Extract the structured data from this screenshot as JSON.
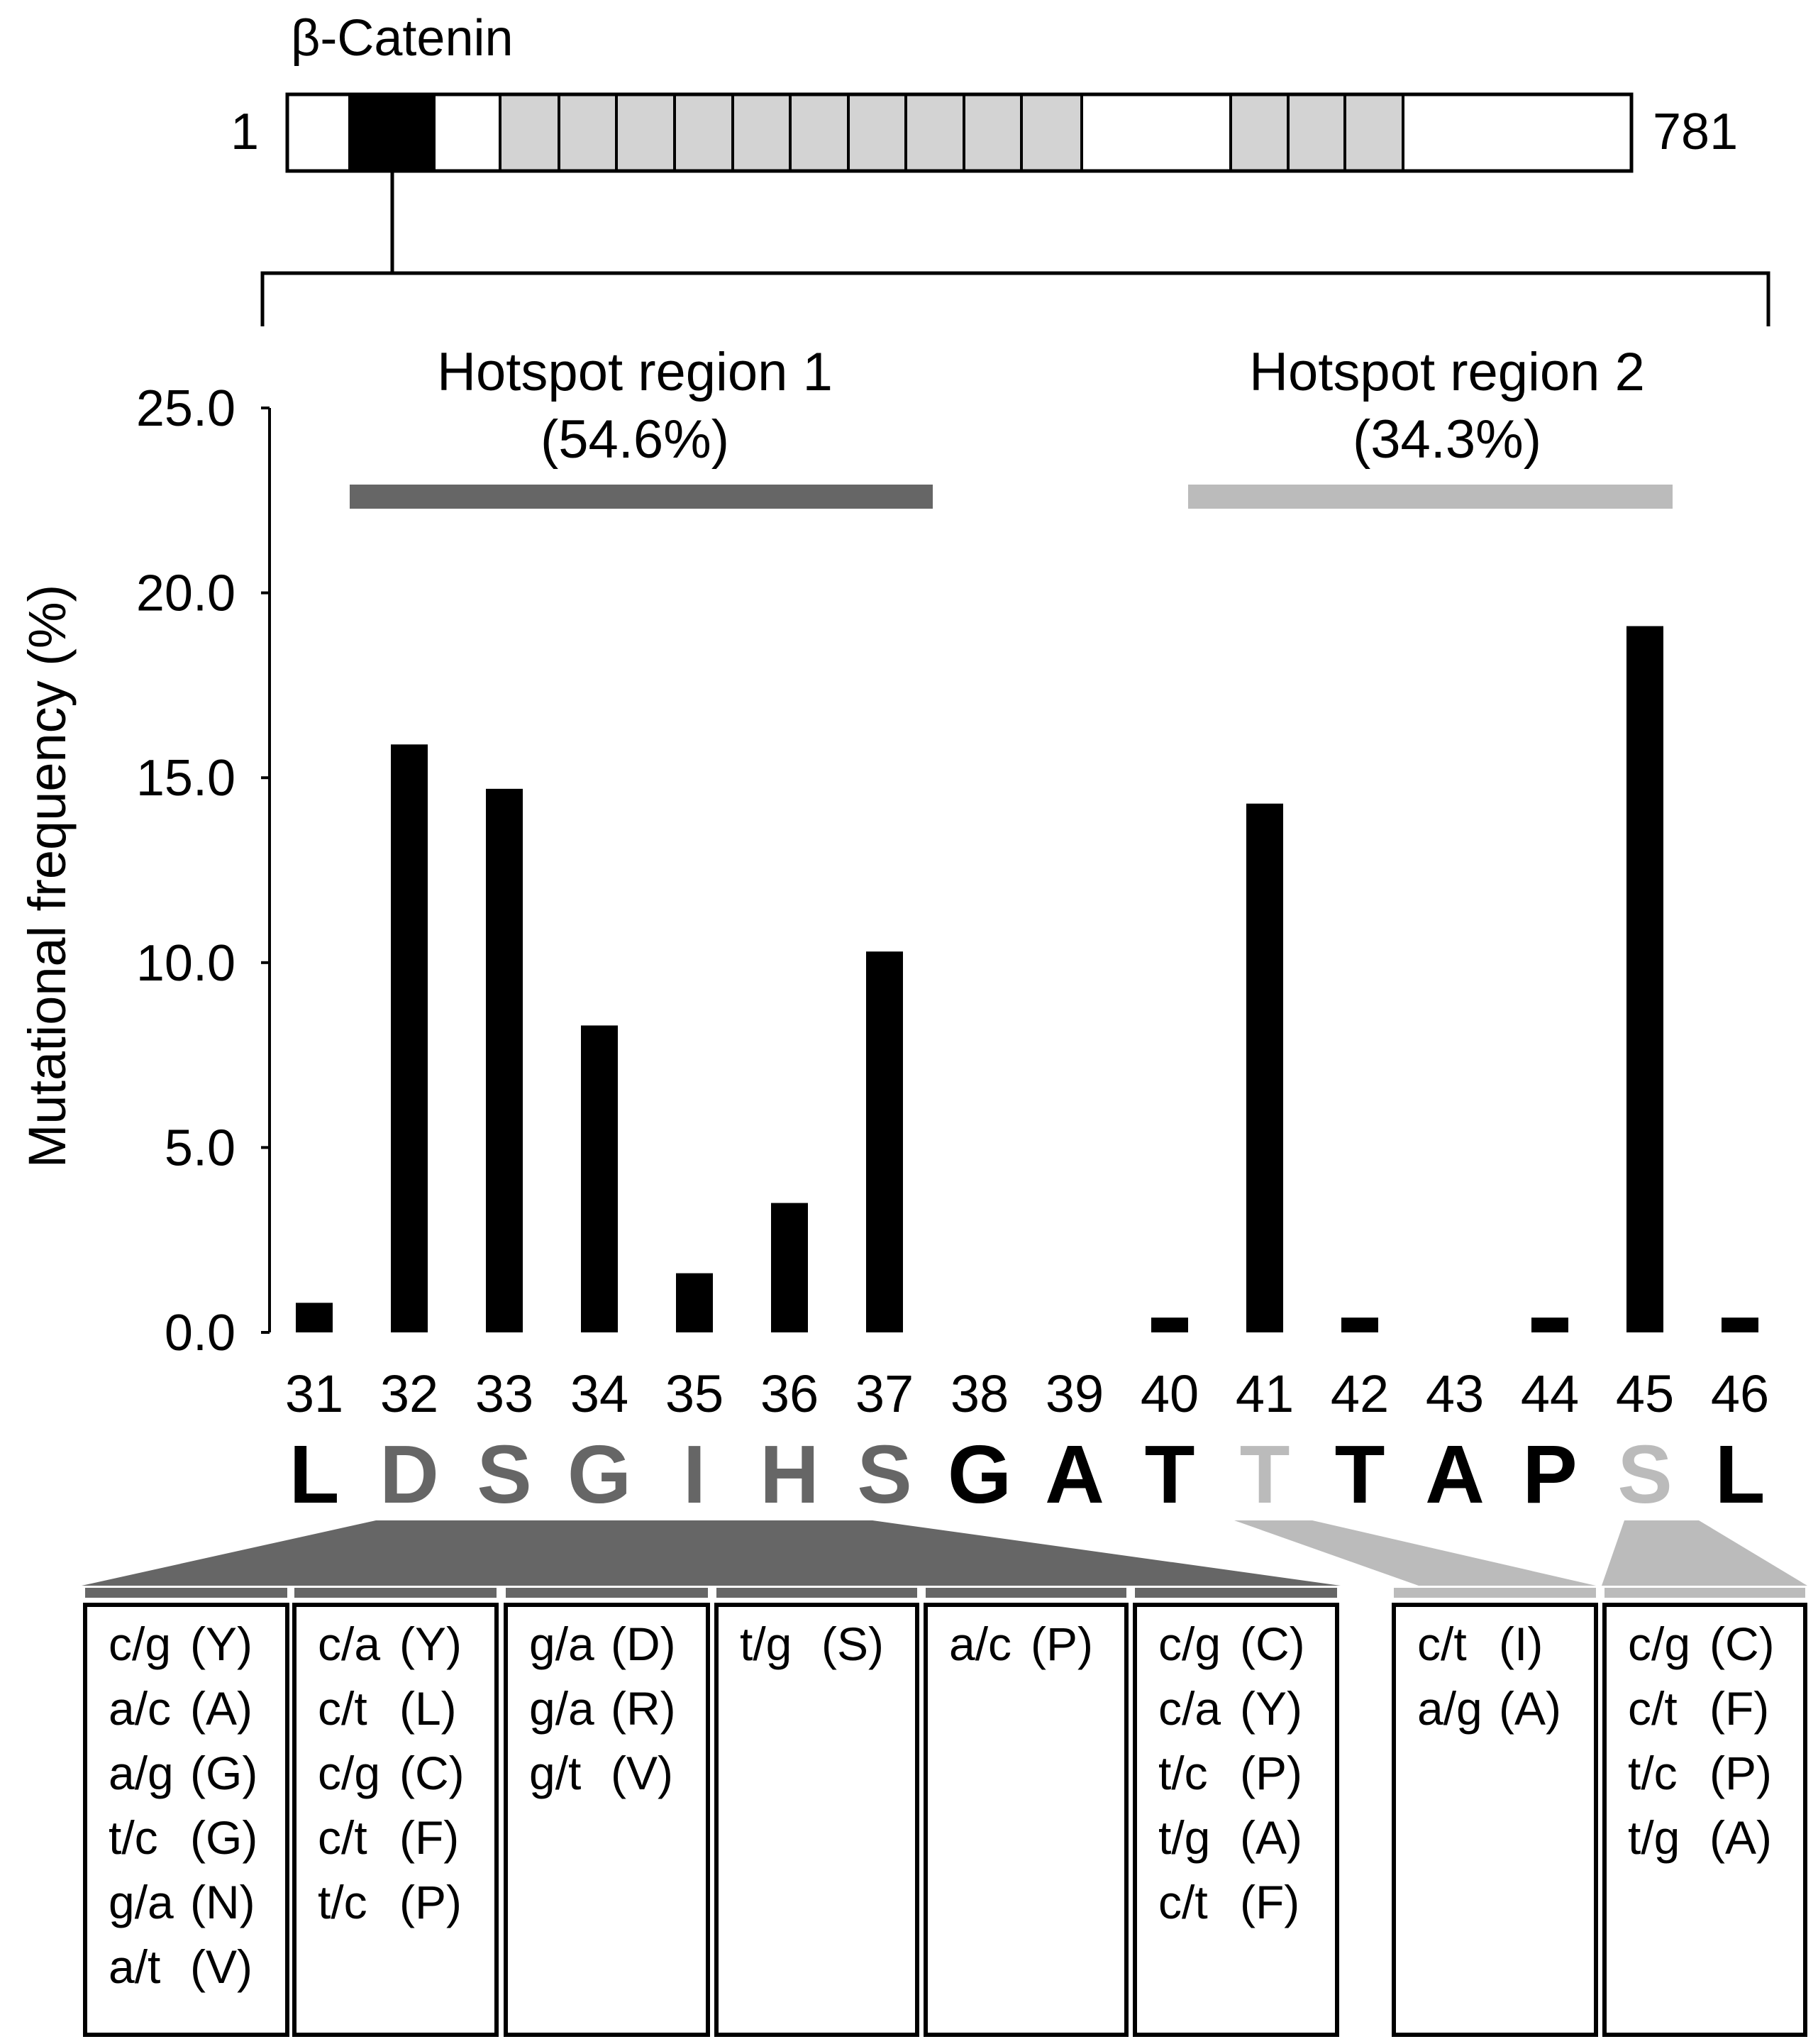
{
  "chart_data": {
    "type": "bar",
    "protein": {
      "name": "β-Catenin",
      "start": "1",
      "end": "781",
      "start_value": 1,
      "end_value": 781
    },
    "ylabel": "Mutational frequency (%)",
    "ylim": [
      0,
      25
    ],
    "yticks": [
      "0.0",
      "5.0",
      "10.0",
      "15.0",
      "20.0",
      "25.0"
    ],
    "ytick_values": [
      0,
      5,
      10,
      15,
      20,
      25
    ],
    "categories": [
      "31",
      "32",
      "33",
      "34",
      "35",
      "36",
      "37",
      "38",
      "39",
      "40",
      "41",
      "42",
      "43",
      "44",
      "45",
      "46"
    ],
    "values": [
      0.8,
      15.9,
      14.7,
      8.3,
      1.6,
      3.5,
      10.3,
      0,
      0,
      0.4,
      14.3,
      0.4,
      0,
      0.4,
      19.1,
      0.4
    ],
    "residues": [
      {
        "letter": "L",
        "color": "#000000"
      },
      {
        "letter": "D",
        "color": "#666666"
      },
      {
        "letter": "S",
        "color": "#666666"
      },
      {
        "letter": "G",
        "color": "#666666"
      },
      {
        "letter": "I",
        "color": "#666666"
      },
      {
        "letter": "H",
        "color": "#666666"
      },
      {
        "letter": "S",
        "color": "#666666"
      },
      {
        "letter": "G",
        "color": "#000000"
      },
      {
        "letter": "A",
        "color": "#000000"
      },
      {
        "letter": "T",
        "color": "#000000"
      },
      {
        "letter": "T",
        "color": "#bbbbbb"
      },
      {
        "letter": "T",
        "color": "#000000"
      },
      {
        "letter": "A",
        "color": "#000000"
      },
      {
        "letter": "P",
        "color": "#000000"
      },
      {
        "letter": "S",
        "color": "#bbbbbb"
      },
      {
        "letter": "L",
        "color": "#000000"
      }
    ],
    "hotspots": [
      {
        "label": "Hotspot region 1",
        "percent": "(54.6%)",
        "color": "#666666",
        "from": 32,
        "to": 37
      },
      {
        "label": "Hotspot region 2",
        "percent": "(34.3%)",
        "color": "#bbbbbb",
        "from": 41,
        "to": 45
      }
    ],
    "mutation_boxes": [
      {
        "group": 1,
        "lines": [
          [
            "c/g",
            "(Y)"
          ],
          [
            "a/c",
            "(A)"
          ],
          [
            "a/g",
            "(G)"
          ],
          [
            "t/c",
            "(G)"
          ],
          [
            "g/a",
            "(N)"
          ],
          [
            "a/t",
            "(V)"
          ]
        ]
      },
      {
        "group": 1,
        "lines": [
          [
            "c/a",
            "(Y)"
          ],
          [
            "c/t",
            "(L)"
          ],
          [
            "c/g",
            "(C)"
          ],
          [
            "c/t",
            "(F)"
          ],
          [
            "t/c",
            "(P)"
          ]
        ]
      },
      {
        "group": 1,
        "lines": [
          [
            "g/a",
            "(D)"
          ],
          [
            "g/a",
            "(R)"
          ],
          [
            "g/t",
            "(V)"
          ]
        ]
      },
      {
        "group": 1,
        "lines": [
          [
            "t/g",
            "(S)"
          ]
        ]
      },
      {
        "group": 1,
        "lines": [
          [
            "a/c",
            "(P)"
          ]
        ]
      },
      {
        "group": 1,
        "lines": [
          [
            "c/g",
            "(C)"
          ],
          [
            "c/a",
            "(Y)"
          ],
          [
            "t/c",
            "(P)"
          ],
          [
            "t/g",
            "(A)"
          ],
          [
            "c/t",
            "(F)"
          ]
        ]
      },
      {
        "group": 2,
        "lines": [
          [
            "c/t",
            "(I)"
          ],
          [
            "a/g",
            "(A)"
          ]
        ]
      },
      {
        "group": 2,
        "lines": [
          [
            "c/g",
            "(C)"
          ],
          [
            "c/t",
            "(F)"
          ],
          [
            "t/c",
            "(P)"
          ],
          [
            "t/g",
            "(A)"
          ]
        ]
      }
    ],
    "grid": false,
    "colors": {
      "bar": "#000000",
      "region1": "#666666",
      "region2": "#bbbbbb",
      "domain_black": "#000000",
      "domain_gray": "#d3d3d3"
    }
  }
}
